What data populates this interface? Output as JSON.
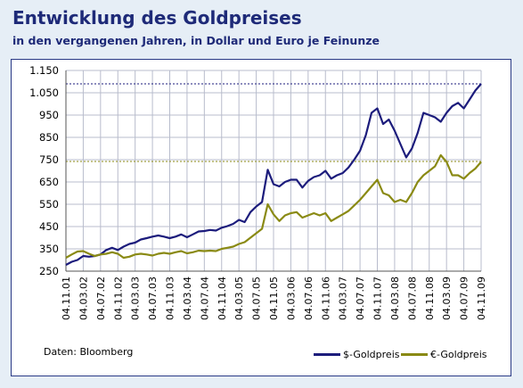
{
  "header": {
    "title": "Entwicklung des Goldpreises",
    "subtitle": "in den vergangenen Jahren, in Dollar und Euro je Feinunze"
  },
  "footer": {
    "source": "Daten: Bloomberg"
  },
  "chart_data": {
    "type": "line",
    "ylim": [
      250,
      1150
    ],
    "y_ticks": [
      250,
      350,
      450,
      550,
      650,
      750,
      850,
      950,
      1050,
      1150
    ],
    "y_tick_labels": [
      "250",
      "350",
      "450",
      "550",
      "650",
      "750",
      "850",
      "950",
      "1.050",
      "1.150"
    ],
    "x_ticks": [
      "04.11.01",
      "04.03.02",
      "04.07.02",
      "04.11.02",
      "04.03.03",
      "04.07.03",
      "04.11.03",
      "04.03.04",
      "04.07.04",
      "04.11.04",
      "04.03.05",
      "04.07.05",
      "04.11.05",
      "04.03.06",
      "04.07.06",
      "04.11.06",
      "04.03.07",
      "04.07.07",
      "04.11.07",
      "04.03.08",
      "04.07.08",
      "04.11.08",
      "04.03.09",
      "04.07.09",
      "04.11.09"
    ],
    "grid": true,
    "legend_position": "bottom-right",
    "reference_lines": [
      {
        "series": "$-Goldpreis",
        "value": 1090,
        "style": "dotted"
      },
      {
        "series": "€-Goldpreis",
        "value": 742,
        "style": "dotted"
      }
    ],
    "series": [
      {
        "name": "$-Goldpreis",
        "color": "#1c1c7c",
        "values": [
          278,
          292,
          300,
          318,
          315,
          318,
          325,
          345,
          355,
          345,
          360,
          372,
          378,
          392,
          398,
          405,
          410,
          405,
          398,
          405,
          415,
          402,
          415,
          428,
          430,
          435,
          432,
          445,
          452,
          462,
          480,
          470,
          515,
          540,
          560,
          705,
          640,
          630,
          650,
          660,
          660,
          625,
          655,
          672,
          680,
          700,
          665,
          680,
          690,
          715,
          750,
          790,
          860,
          960,
          980,
          910,
          930,
          880,
          820,
          760,
          800,
          870,
          960,
          950,
          940,
          920,
          960,
          990,
          1005,
          980,
          1020,
          1060,
          1090
        ]
      },
      {
        "name": "€-Goldpreis",
        "color": "#8a8a14",
        "values": [
          310,
          325,
          338,
          340,
          328,
          318,
          325,
          328,
          335,
          328,
          310,
          315,
          325,
          328,
          325,
          320,
          328,
          332,
          328,
          335,
          340,
          330,
          335,
          342,
          340,
          342,
          340,
          350,
          355,
          360,
          372,
          380,
          400,
          420,
          440,
          550,
          505,
          475,
          500,
          510,
          515,
          490,
          500,
          510,
          500,
          510,
          475,
          490,
          505,
          520,
          545,
          570,
          600,
          630,
          660,
          600,
          590,
          560,
          570,
          560,
          600,
          650,
          680,
          700,
          720,
          770,
          740,
          680,
          680,
          665,
          690,
          710,
          740
        ]
      }
    ]
  }
}
